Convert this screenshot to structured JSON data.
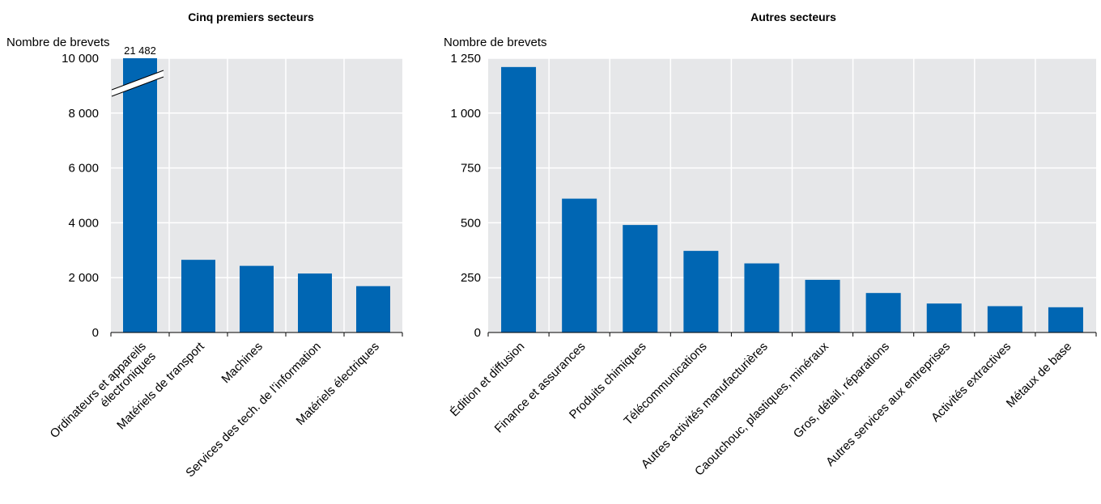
{
  "chart_data": [
    {
      "type": "bar",
      "title": "Cinq premiers secteurs",
      "ylabel": "Nombre de brevets",
      "xlabel": "",
      "categories": [
        [
          "Ordinateurs et appareils",
          "électroniques"
        ],
        [
          "Matériels de transport"
        ],
        [
          "Machines"
        ],
        [
          "Services des tech. de l’information"
        ],
        [
          "Matériels électriques"
        ]
      ],
      "values": [
        21482,
        2650,
        2430,
        2150,
        1690
      ],
      "data_labels": [
        "21 482",
        "",
        "",
        "",
        ""
      ],
      "ylim": [
        0,
        10000
      ],
      "yticks": [
        0,
        2000,
        4000,
        6000,
        8000,
        10000
      ],
      "ytick_labels": [
        "0",
        "2 000",
        "4 000",
        "6 000",
        "8 000",
        "10 000"
      ],
      "axis_break_on_first_bar": true,
      "grid": true,
      "colors": {
        "bar": "#0066B3",
        "plot_bg": "#E6E7E9",
        "grid": "#FFFFFF"
      }
    },
    {
      "type": "bar",
      "title": "Autres secteurs",
      "ylabel": "Nombre de brevets",
      "xlabel": "",
      "categories": [
        [
          "Édition et diffusion"
        ],
        [
          "Finance et assurances"
        ],
        [
          "Produits chimiques"
        ],
        [
          "Télécommunications"
        ],
        [
          "Autres activités manufacturières"
        ],
        [
          "Caoutchouc, plastiques, minéraux"
        ],
        [
          "Gros, détail, réparations"
        ],
        [
          "Autres services aux entreprises"
        ],
        [
          "Activités extractives"
        ],
        [
          "Métaux de base"
        ]
      ],
      "values": [
        1210,
        610,
        490,
        372,
        315,
        240,
        180,
        132,
        120,
        115
      ],
      "ylim": [
        0,
        1250
      ],
      "yticks": [
        0,
        250,
        500,
        750,
        1000,
        1250
      ],
      "ytick_labels": [
        "0",
        "250",
        "500",
        "750",
        "1 000",
        "1 250"
      ],
      "grid": true,
      "colors": {
        "bar": "#0066B3",
        "plot_bg": "#E6E7E9",
        "grid": "#FFFFFF"
      }
    }
  ]
}
